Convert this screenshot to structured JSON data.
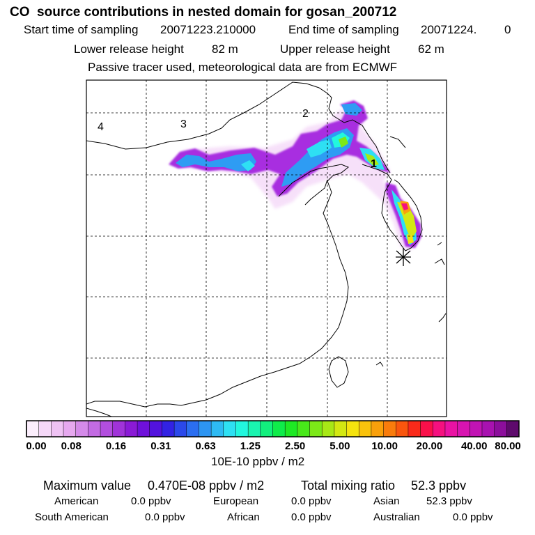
{
  "header": {
    "title": "CO  source contributions in nested domain for gosan_200712",
    "start_label": "Start time of sampling",
    "start_value": "20071223.210000",
    "end_label": "End time of sampling",
    "end_value": "20071224.",
    "end_extra": "0",
    "lower_label": "Lower release height",
    "lower_value": "82 m",
    "upper_label": "Upper release height",
    "upper_value": "62 m",
    "note": "Passive tracer used, meteorological data are from ECMWF"
  },
  "map": {
    "region_labels": [
      {
        "text": "1"
      },
      {
        "text": "2"
      },
      {
        "text": "3"
      },
      {
        "text": "4"
      }
    ],
    "receptor_marker": "asterisk-icon"
  },
  "colorbar": {
    "colors": [
      "#fbeefc",
      "#f5d8f8",
      "#efc2f4",
      "#e6a8ef",
      "#d48ae9",
      "#c36be3",
      "#b24ede",
      "#a033d9",
      "#8a1ad6",
      "#6f10da",
      "#5212de",
      "#3222e4",
      "#2b48ea",
      "#2b6ef0",
      "#2d95f2",
      "#2ebaf3",
      "#2ee0f3",
      "#22f7de",
      "#1af4b0",
      "#12f07d",
      "#0fec4a",
      "#1ee924",
      "#48e81a",
      "#7ce818",
      "#a8e816",
      "#d3e812",
      "#f5e30e",
      "#f9c20c",
      "#f9a00b",
      "#f97c0c",
      "#f9560e",
      "#f92a1a",
      "#f9104a",
      "#f5107f",
      "#ea12a3",
      "#d814b0",
      "#c114b4",
      "#a812b0",
      "#8c0e9c",
      "#5e0a6c"
    ],
    "tick_labels": [
      "0.00",
      "0.08",
      "0.16",
      "0.31",
      "0.63",
      "1.25",
      "2.50",
      "5.00",
      "10.00",
      "20.00",
      "40.00",
      "80.00"
    ],
    "unit": "10E-10 ppbv / m2"
  },
  "stats": {
    "max_label": "Maximum value",
    "max_value": "0.470E-08 ppbv / m2",
    "total_label": "Total mixing ratio",
    "total_value": "52.3 ppbv",
    "sources": [
      {
        "name": "American",
        "value": "0.0 ppbv"
      },
      {
        "name": "European",
        "value": "0.0 ppbv"
      },
      {
        "name": "Asian",
        "value": "52.3 ppbv"
      },
      {
        "name": "South American",
        "value": "0.0 ppbv"
      },
      {
        "name": "African",
        "value": "0.0 ppbv"
      },
      {
        "name": "Australian",
        "value": "0.0 ppbv"
      }
    ]
  }
}
